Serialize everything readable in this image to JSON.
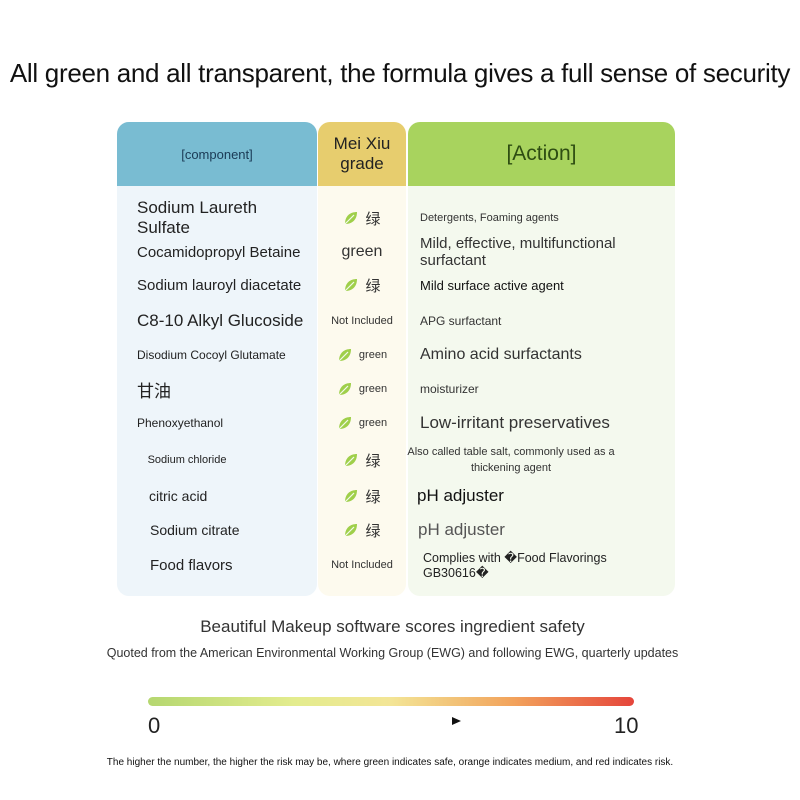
{
  "headline": "All green and all transparent, the formula gives a full sense of security",
  "table": {
    "headers": {
      "component": "[component]",
      "grade": "Mei Xiu grade",
      "action": "[Action]"
    },
    "rows": [
      {
        "component": "Sodium Laureth Sulfate",
        "leaf": true,
        "grade": "绿",
        "action": "Detergents, Foaming agents"
      },
      {
        "component": "Cocamidopropyl Betaine",
        "leaf": false,
        "grade": "green",
        "action": "Mild, effective, multifunctional surfactant"
      },
      {
        "component": "Sodium lauroyl diacetate",
        "leaf": true,
        "grade": "绿",
        "action": "Mild surface active agent"
      },
      {
        "component": "C8-10 Alkyl Glucoside",
        "leaf": false,
        "grade": "Not Included",
        "action": "APG surfactant"
      },
      {
        "component": "Disodium Cocoyl Glutamate",
        "leaf": true,
        "grade": "green",
        "action": "Amino acid surfactants"
      },
      {
        "component": "甘油",
        "leaf": true,
        "grade": "green",
        "action": "moisturizer"
      },
      {
        "component": "Phenoxyethanol",
        "leaf": true,
        "grade": "green",
        "action": "Low-irritant preservatives"
      },
      {
        "component": "Sodium chloride",
        "leaf": true,
        "grade": "绿",
        "action": "Also called table salt, commonly used as a thickening agent"
      },
      {
        "component": "citric acid",
        "leaf": true,
        "grade": "绿",
        "action": "pH adjuster"
      },
      {
        "component": "Sodium citrate",
        "leaf": true,
        "grade": "绿",
        "action": "pH adjuster"
      },
      {
        "component": "Food flavors",
        "leaf": false,
        "grade": "Not Included",
        "action": "Complies with �Food Flavorings GB30616�"
      }
    ]
  },
  "caption": {
    "title": "Beautiful Makeup software scores ingredient safety",
    "subtitle": "Quoted from the American Environmental Working Group (EWG) and following EWG, quarterly updates"
  },
  "scale": {
    "min": "0",
    "max": "10",
    "colors": [
      "#b5d770",
      "#f3e596",
      "#e5453b"
    ]
  },
  "footnote": "The higher the number, the higher the risk may be, where green indicates safe, orange indicates medium, and red indicates risk."
}
